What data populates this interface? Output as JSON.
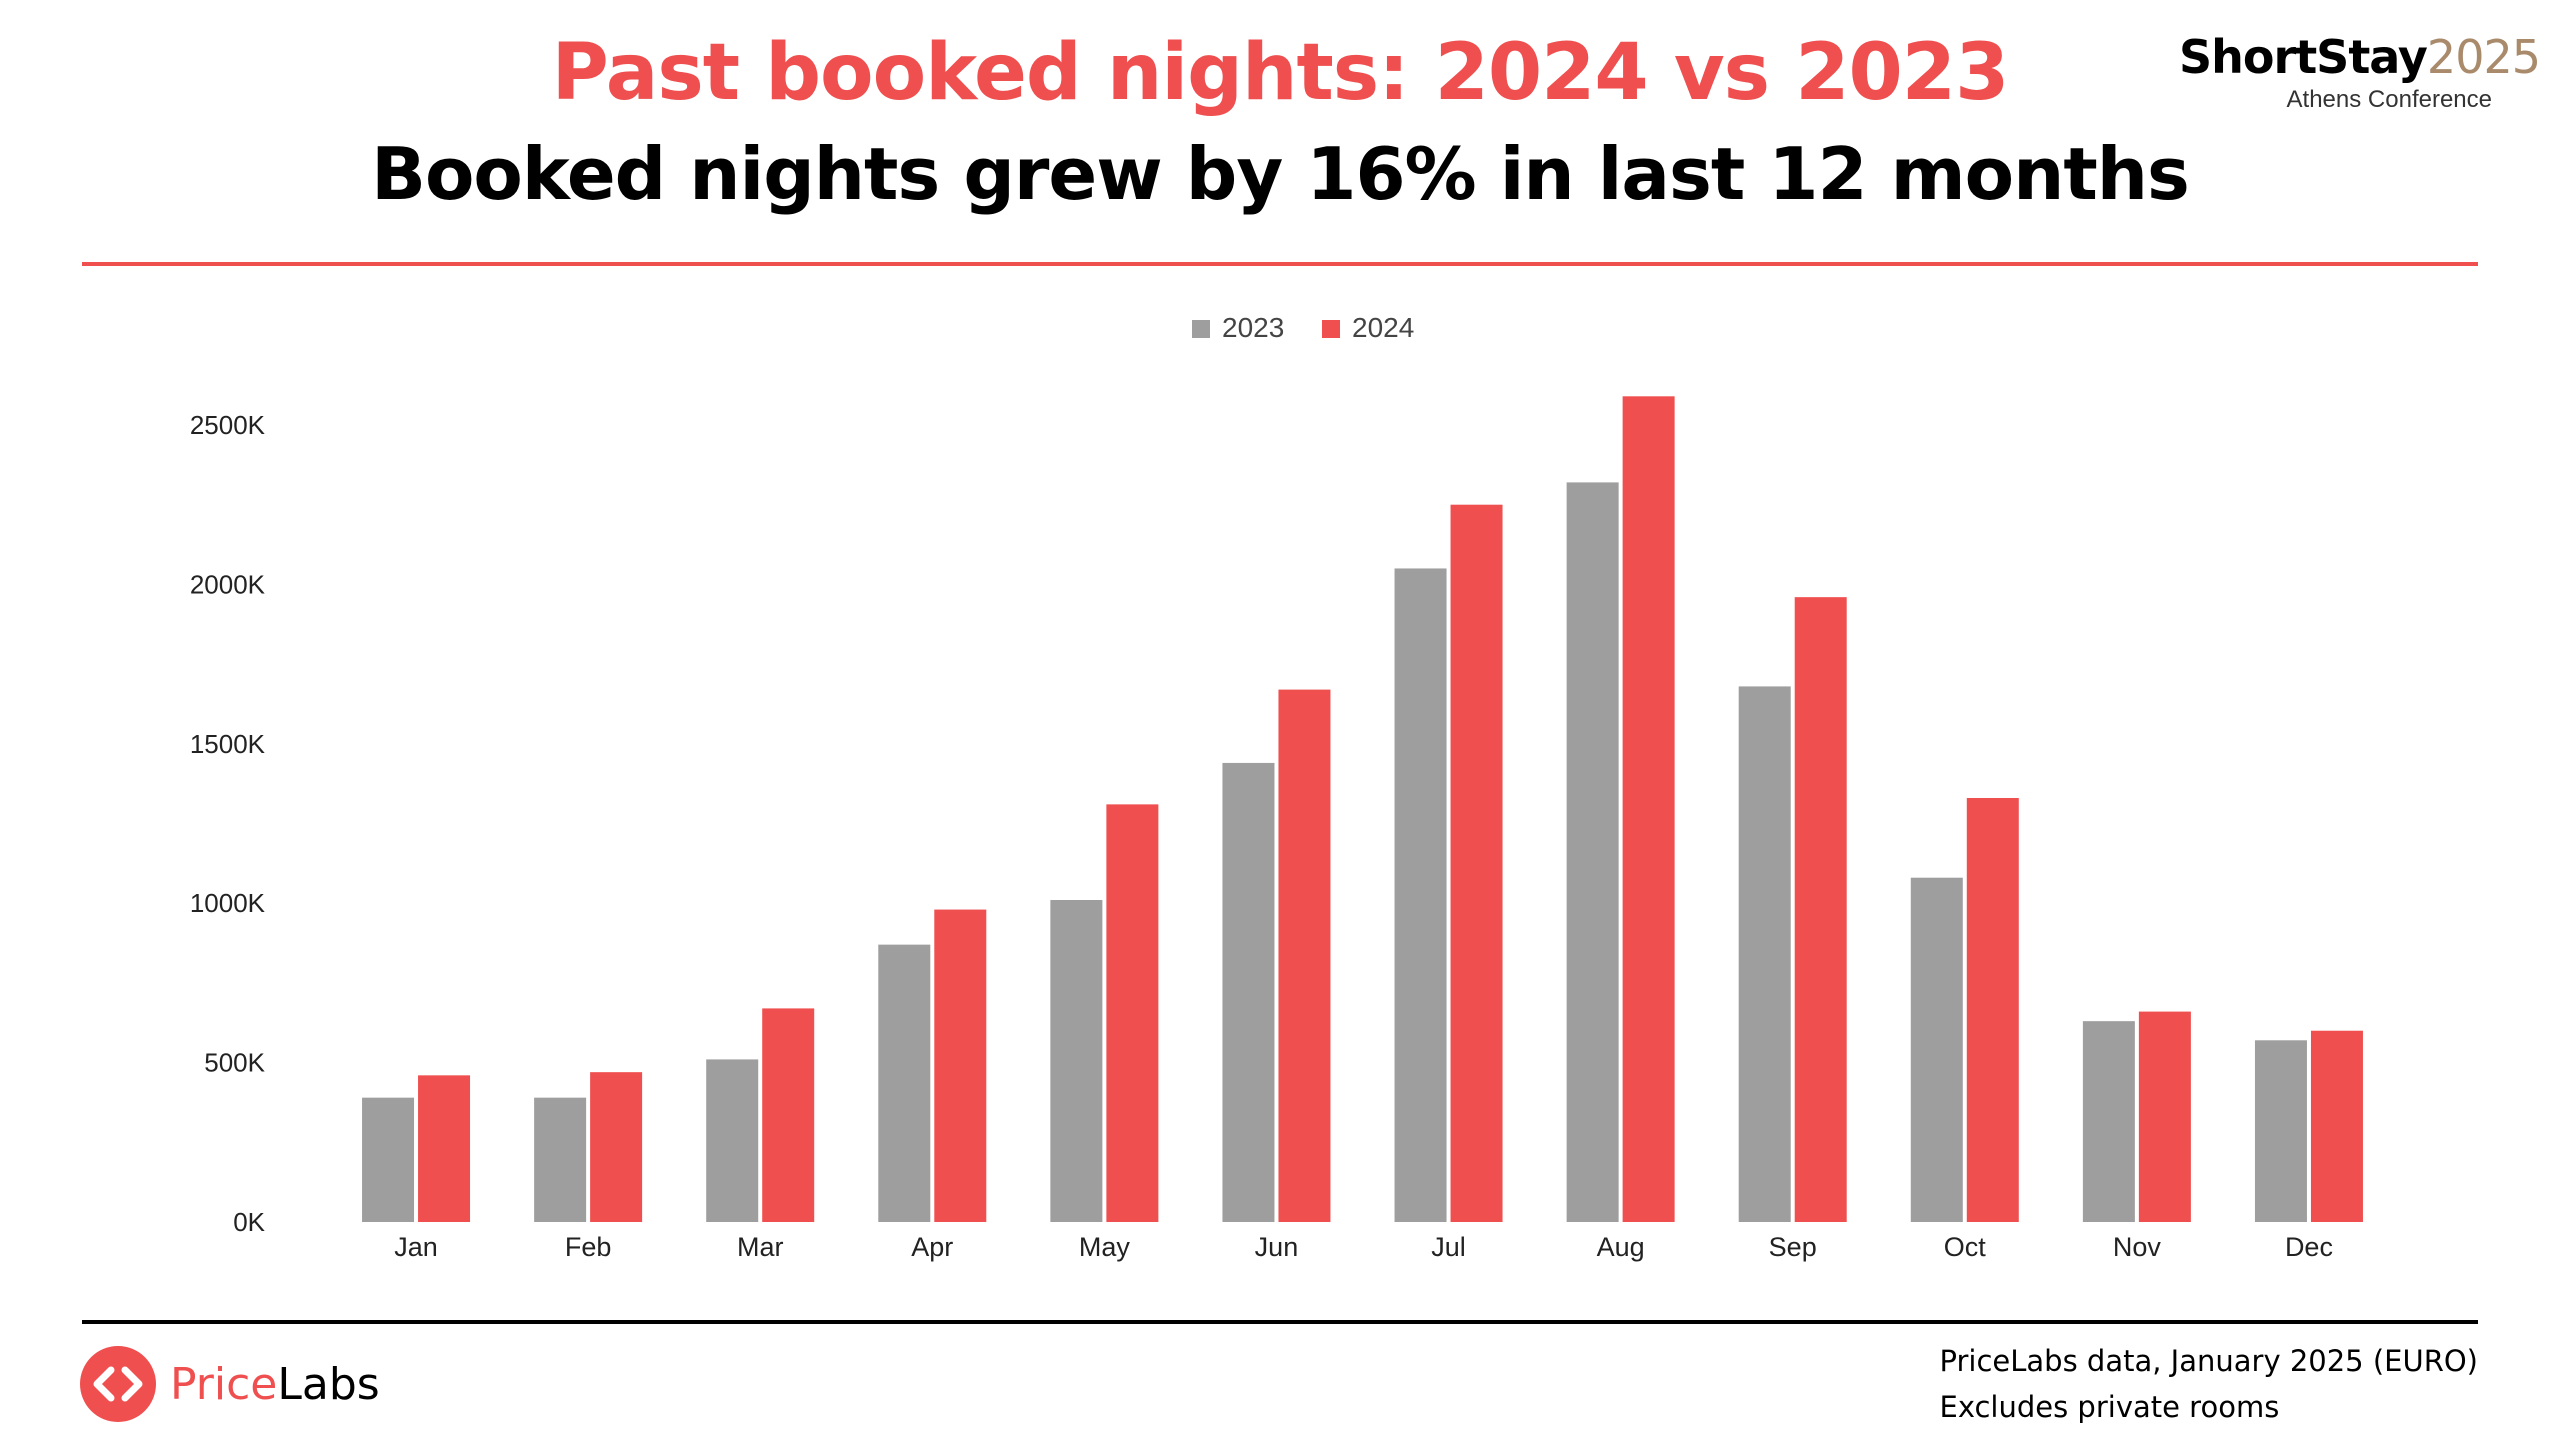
{
  "header": {
    "title": "Past booked nights: 2024 vs 2023",
    "subtitle": "Booked nights grew by 16% in last 12 months"
  },
  "brand": {
    "name": "ShortStay",
    "year": "2025",
    "tagline": "Athens Conference"
  },
  "footer": {
    "logo_text_1": "Price",
    "logo_text_2": "Labs",
    "source_line1": "PriceLabs data, January 2025 (EURO)",
    "source_line2": "Excludes private rooms"
  },
  "colors": {
    "accent_red": "#ef4f4f",
    "series_2023": "#9e9e9e",
    "series_2024": "#ef4f4f",
    "brand_year": "#a98a6a"
  },
  "chart_data": {
    "type": "bar",
    "categories": [
      "Jan",
      "Feb",
      "Mar",
      "Apr",
      "May",
      "Jun",
      "Jul",
      "Aug",
      "Sep",
      "Oct",
      "Nov",
      "Dec"
    ],
    "series": [
      {
        "name": "2023",
        "values": [
          390,
          390,
          510,
          870,
          1010,
          1440,
          2050,
          2320,
          1680,
          1080,
          630,
          570
        ]
      },
      {
        "name": "2024",
        "values": [
          460,
          470,
          670,
          980,
          1310,
          1670,
          2250,
          2590,
          1960,
          1330,
          660,
          600
        ]
      }
    ],
    "ylim": [
      0,
      2500
    ],
    "yticks": [
      "0K",
      "500K",
      "1000K",
      "1500K",
      "2000K",
      "2500K"
    ],
    "ytick_values": [
      0,
      500,
      1000,
      1500,
      2000,
      2500
    ],
    "legend": "top-center",
    "grid": false
  }
}
